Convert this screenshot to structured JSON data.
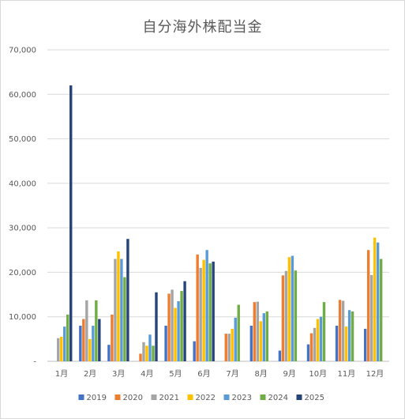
{
  "chart_data": {
    "type": "bar",
    "title": "自分海外株配当金",
    "categories": [
      "1月",
      "2月",
      "3月",
      "4月",
      "5月",
      "6月",
      "7月",
      "8月",
      "9月",
      "10月",
      "11月",
      "12月"
    ],
    "yticks": [
      "-",
      "10,000",
      "20,000",
      "30,000",
      "40,000",
      "50,000",
      "60,000",
      "70,000"
    ],
    "ylim": [
      0,
      70000
    ],
    "grid": true,
    "legend_position": "bottom",
    "series": [
      {
        "name": "2019",
        "color": "#4472C4",
        "values": [
          0,
          8000,
          3700,
          0,
          8000,
          4500,
          0,
          8000,
          2400,
          3800,
          8000,
          7300
        ]
      },
      {
        "name": "2020",
        "color": "#ED7D31",
        "values": [
          0,
          9500,
          10500,
          1700,
          15200,
          24000,
          6200,
          13300,
          19300,
          6300,
          13800,
          25000
        ]
      },
      {
        "name": "2021",
        "color": "#A5A5A5",
        "values": [
          5200,
          13700,
          23000,
          4300,
          16100,
          21000,
          6200,
          13400,
          20300,
          7500,
          13600,
          19400
        ]
      },
      {
        "name": "2022",
        "color": "#FFC000",
        "values": [
          5500,
          5000,
          24700,
          3500,
          12000,
          22800,
          7300,
          9000,
          23400,
          9500,
          7800,
          27800
        ]
      },
      {
        "name": "2023",
        "color": "#5B9BD5",
        "values": [
          7800,
          8000,
          23000,
          6000,
          13500,
          25000,
          9800,
          10800,
          23700,
          10000,
          11500,
          26700
        ]
      },
      {
        "name": "2024",
        "color": "#70AD47",
        "values": [
          10500,
          13700,
          18900,
          3500,
          15800,
          22000,
          12700,
          11200,
          20400,
          13300,
          11200,
          23000
        ]
      },
      {
        "name": "2025",
        "color": "#264478",
        "values": [
          62000,
          9500,
          27500,
          15500,
          18000,
          22400,
          0,
          0,
          0,
          0,
          0,
          0
        ]
      }
    ]
  }
}
